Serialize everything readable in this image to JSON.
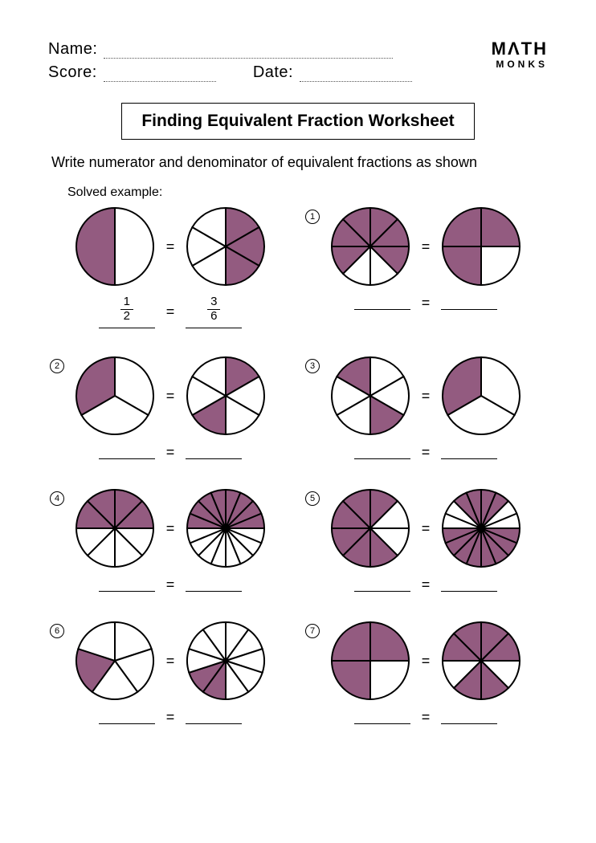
{
  "header": {
    "name_label": "Name:",
    "score_label": "Score:",
    "date_label": "Date:"
  },
  "logo": {
    "top": "MΛTH",
    "bottom": "MONKS"
  },
  "title": "Finding Equivalent Fraction Worksheet",
  "instructions": "Write numerator and denominator of equivalent fractions as shown",
  "solved_label": "Solved example:",
  "colors": {
    "fill": "#935b80",
    "stroke": "#000000",
    "background": "#ffffff"
  },
  "pie_radius": 48,
  "stroke_width": 2,
  "example": {
    "left": {
      "slices": 2,
      "shaded": [
        1
      ]
    },
    "right": {
      "slices": 6,
      "shaded": [
        0,
        1,
        2
      ]
    },
    "left_fraction": {
      "num": "1",
      "den": "2"
    },
    "right_fraction": {
      "num": "3",
      "den": "6"
    }
  },
  "problems": [
    {
      "n": "1",
      "left": {
        "slices": 8,
        "shaded": [
          0,
          1,
          2,
          5,
          6,
          7
        ]
      },
      "right": {
        "slices": 4,
        "shaded": [
          0,
          2,
          3
        ]
      }
    },
    {
      "n": "2",
      "left": {
        "slices": 3,
        "shaded": [
          2
        ]
      },
      "right": {
        "slices": 6,
        "shaded": [
          0,
          3
        ]
      }
    },
    {
      "n": "3",
      "left": {
        "slices": 6,
        "shaded": [
          2,
          5
        ]
      },
      "right": {
        "slices": 3,
        "shaded": [
          2
        ]
      }
    },
    {
      "n": "4",
      "left": {
        "slices": 8,
        "shaded": [
          0,
          1,
          6,
          7
        ]
      },
      "right": {
        "slices": 16,
        "shaded": [
          0,
          1,
          2,
          3,
          12,
          13,
          14,
          15
        ]
      }
    },
    {
      "n": "5",
      "left": {
        "slices": 8,
        "shaded": [
          0,
          3,
          4,
          5,
          6,
          7
        ]
      },
      "right": {
        "slices": 16,
        "shaded": [
          0,
          1,
          4,
          5,
          6,
          7,
          8,
          9,
          10,
          11,
          14,
          15
        ]
      }
    },
    {
      "n": "6",
      "left": {
        "slices": 5,
        "shaded": [
          3
        ]
      },
      "right": {
        "slices": 10,
        "shaded": [
          5,
          6
        ]
      }
    },
    {
      "n": "7",
      "left": {
        "slices": 4,
        "shaded": [
          0,
          2,
          3
        ]
      },
      "right": {
        "slices": 8,
        "shaded": [
          0,
          1,
          3,
          4,
          6,
          7
        ]
      }
    }
  ]
}
